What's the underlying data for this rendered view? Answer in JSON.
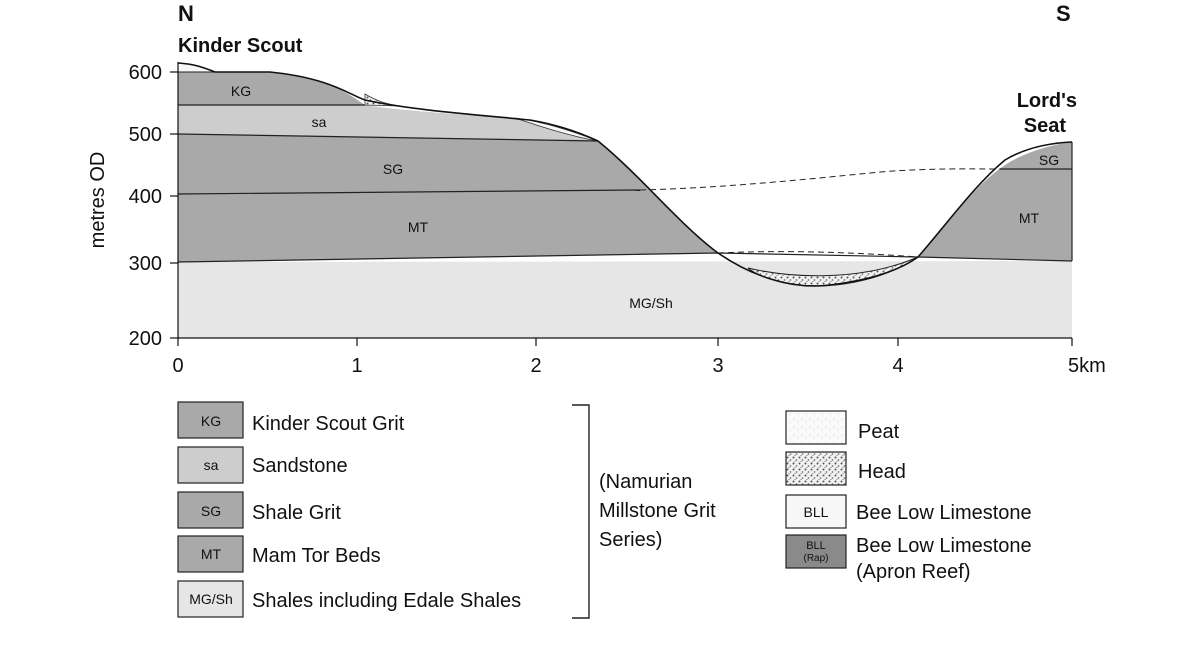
{
  "header": {
    "north": "N",
    "south": "S",
    "left_peak": "Kinder Scout",
    "right_peak_line1": "Lord's",
    "right_peak_line2": "Seat"
  },
  "y_axis": {
    "label": "metres OD",
    "ticks": [
      "600",
      "500",
      "400",
      "300",
      "200"
    ]
  },
  "x_axis": {
    "ticks": [
      "0",
      "1",
      "2",
      "3",
      "4",
      "5km"
    ]
  },
  "section_labels": {
    "kg": "KG",
    "sa": "sa",
    "sg": "SG",
    "mt": "MT",
    "mgsh": "MG/Sh",
    "sg_right": "SG",
    "mt_right": "MT"
  },
  "legend_left": [
    {
      "code": "KG",
      "label": "Kinder Scout Grit",
      "color": "#a9a9a9"
    },
    {
      "code": "sa",
      "label": "Sandstone",
      "color": "#cdcdcd"
    },
    {
      "code": "SG",
      "label": "Shale Grit",
      "color": "#a9a9a9"
    },
    {
      "code": "MT",
      "label": "Mam Tor Beds",
      "color": "#a9a9a9"
    },
    {
      "code": "MG/Sh",
      "label": "Shales including Edale Shales",
      "color": "#e6e6e6"
    }
  ],
  "bracket_note": {
    "line1": "(Namurian",
    "line2": "Millstone Grit",
    "line3": "Series)"
  },
  "legend_right": [
    {
      "code": "",
      "label": "Peat"
    },
    {
      "code": "",
      "label": "Head"
    },
    {
      "code": "BLL",
      "label": "Bee Low Limestone"
    },
    {
      "code": "BLL",
      "code2": "(Rap)",
      "label": "Bee Low Limestone",
      "label2": "(Apron Reef)"
    }
  ],
  "colors": {
    "mid_grey": "#a9a9a9",
    "light_grey": "#cdcdcd",
    "pale_grey": "#e6e6e6",
    "peat_white": "#f7f7f7",
    "reef_grey": "#8a8a8a"
  }
}
